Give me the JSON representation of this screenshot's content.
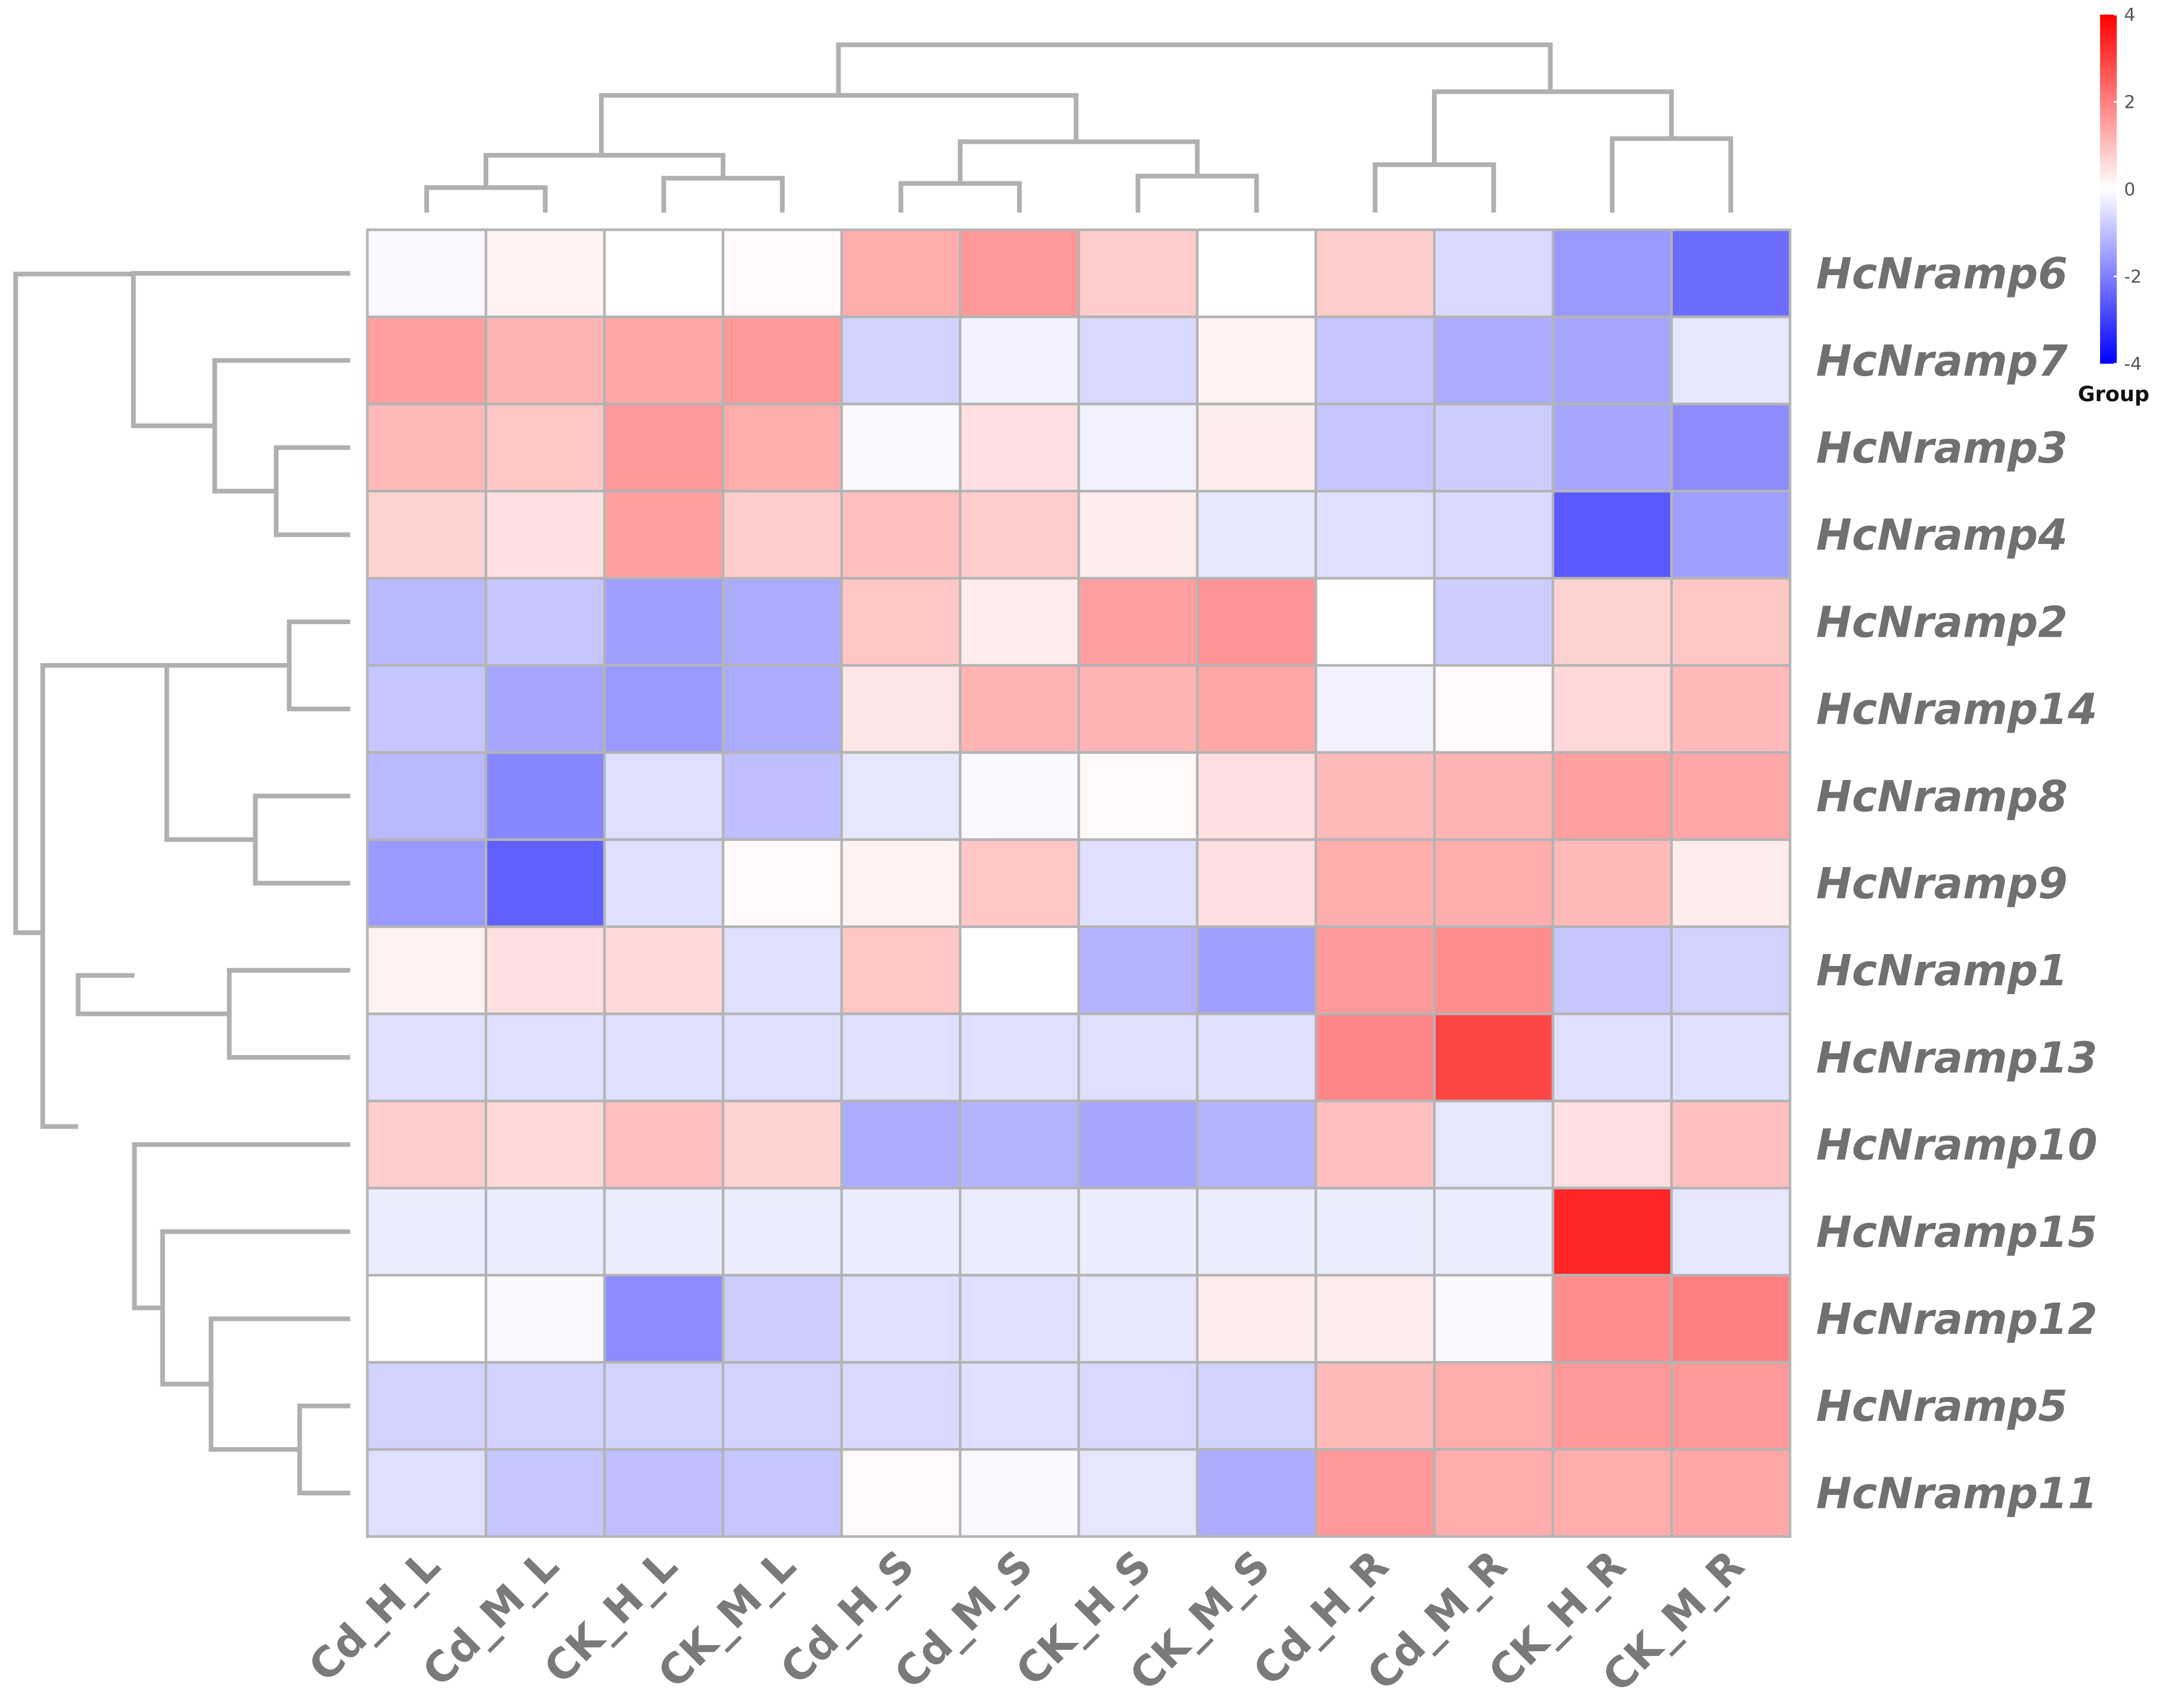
{
  "chart_data": {
    "type": "heatmap",
    "title": "",
    "columns": [
      "Cd_H_L",
      "Cd_M_L",
      "CK_H_L",
      "CK_M_L",
      "Cd_H_S",
      "Cd_M_S",
      "CK_H_S",
      "CK_M_S",
      "Cd_H_R",
      "Cd_M_R",
      "CK_H_R",
      "CK_M_R"
    ],
    "rows": [
      "HcNramp6",
      "HcNramp7",
      "HcNramp3",
      "HcNramp4",
      "HcNramp2",
      "HcNramp14",
      "HcNramp8",
      "HcNramp9",
      "HcNramp1",
      "HcNramp13",
      "HcNramp10",
      "HcNramp15",
      "HcNramp12",
      "HcNramp5",
      "HcNramp11"
    ],
    "values": [
      [
        -0.1,
        0.2,
        0.0,
        0.1,
        1.3,
        1.6,
        0.8,
        0.0,
        0.8,
        -0.6,
        -1.6,
        -2.3
      ],
      [
        1.5,
        1.2,
        1.4,
        1.6,
        -0.7,
        -0.2,
        -0.6,
        0.2,
        -0.9,
        -1.3,
        -1.4,
        -0.4
      ],
      [
        1.1,
        0.9,
        1.6,
        1.3,
        -0.1,
        0.5,
        -0.2,
        0.3,
        -0.9,
        -0.8,
        -1.4,
        -1.8
      ],
      [
        0.7,
        0.5,
        1.5,
        0.8,
        1.0,
        0.8,
        0.3,
        -0.4,
        -0.5,
        -0.6,
        -2.6,
        -1.5
      ],
      [
        -1.1,
        -0.9,
        -1.5,
        -1.3,
        0.9,
        0.3,
        1.5,
        1.7,
        0.0,
        -0.8,
        0.7,
        0.9
      ],
      [
        -0.9,
        -1.4,
        -1.6,
        -1.3,
        0.4,
        1.2,
        1.2,
        1.4,
        -0.2,
        0.1,
        0.6,
        1.1
      ],
      [
        -1.1,
        -1.9,
        -0.5,
        -1.0,
        -0.4,
        -0.1,
        0.1,
        0.5,
        1.1,
        1.2,
        1.5,
        1.4
      ],
      [
        -1.6,
        -2.5,
        -0.5,
        0.1,
        0.2,
        0.9,
        -0.5,
        0.5,
        1.3,
        1.3,
        1.1,
        0.3
      ],
      [
        0.2,
        0.5,
        0.6,
        -0.5,
        0.9,
        0.0,
        -1.2,
        -1.5,
        1.6,
        1.8,
        -0.9,
        -0.7
      ],
      [
        -0.5,
        -0.5,
        -0.5,
        -0.5,
        -0.5,
        -0.5,
        -0.5,
        -0.5,
        1.9,
        2.9,
        -0.5,
        -0.5
      ],
      [
        0.8,
        0.6,
        1.0,
        0.7,
        -1.3,
        -1.2,
        -1.4,
        -1.2,
        1.0,
        -0.4,
        0.5,
        1.0
      ],
      [
        -0.3,
        -0.3,
        -0.3,
        -0.3,
        -0.3,
        -0.3,
        -0.3,
        -0.3,
        -0.3,
        -0.3,
        3.4,
        -0.4
      ],
      [
        0.0,
        -0.1,
        -1.8,
        -0.8,
        -0.5,
        -0.5,
        -0.4,
        0.3,
        0.3,
        -0.1,
        1.8,
        2.0
      ],
      [
        -0.7,
        -0.7,
        -0.7,
        -0.7,
        -0.6,
        -0.5,
        -0.6,
        -0.7,
        1.1,
        1.3,
        1.6,
        1.6
      ],
      [
        -0.5,
        -0.9,
        -1.0,
        -0.9,
        0.1,
        -0.1,
        -0.4,
        -1.3,
        1.6,
        1.3,
        1.3,
        1.4
      ]
    ],
    "color_scale": {
      "title": "Group",
      "min": -4,
      "max": 4,
      "ticks": [
        "4",
        "2",
        "0",
        "-2",
        "-4"
      ],
      "low_color": "#0000ff",
      "mid_color": "#ffffff",
      "high_color": "#ff0000"
    },
    "row_dendrogram": true,
    "column_dendrogram": true
  }
}
